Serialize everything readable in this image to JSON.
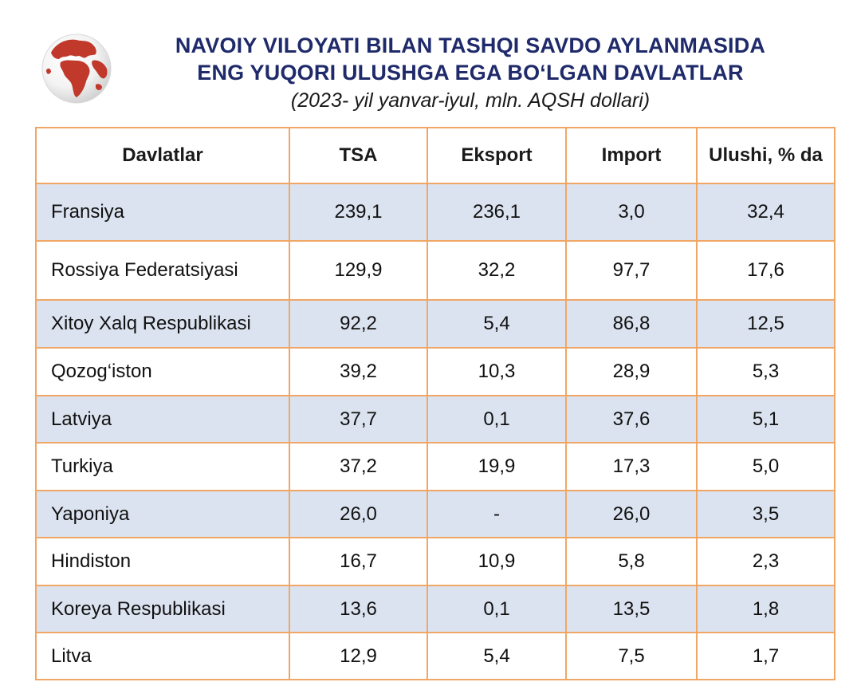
{
  "title": {
    "line1": "NAVOIY VILOYATI BILAN TASHQI SAVDO AYLANMASIDA",
    "line2": "ENG YUQORI ULUSHGA EGA BO‘LGAN DAVLATLAR",
    "subtitle": "(2023- yil yanvar-iyul, mln. AQSH dollari)"
  },
  "logo": {
    "icon": "globe-icon",
    "color": "#c0392b"
  },
  "colors": {
    "border": "#f0a766",
    "shaded_row": "#dce3f0",
    "title": "#1f2a6b"
  },
  "table": {
    "headers": [
      "Davlatlar",
      "TSA",
      "Eksport",
      "Import",
      "Ulushi, % da"
    ],
    "rows": [
      [
        "Fransiya",
        "239,1",
        "236,1",
        "3,0",
        "32,4"
      ],
      [
        "Rossiya Federatsiyasi",
        "129,9",
        "32,2",
        "97,7",
        "17,6"
      ],
      [
        "Xitoy Xalq Respublikasi",
        "92,2",
        "5,4",
        "86,8",
        "12,5"
      ],
      [
        "Qozog‘iston",
        "39,2",
        "10,3",
        "28,9",
        "5,3"
      ],
      [
        "Latviya",
        "37,7",
        "0,1",
        "37,6",
        "5,1"
      ],
      [
        "Turkiya",
        "37,2",
        "19,9",
        "17,3",
        "5,0"
      ],
      [
        "Yaponiya",
        "26,0",
        "-",
        "26,0",
        "3,5"
      ],
      [
        "Hindiston",
        "16,7",
        "10,9",
        "5,8",
        "2,3"
      ],
      [
        "Koreya Respublikasi",
        "13,6",
        "0,1",
        "13,5",
        "1,8"
      ],
      [
        "Litva",
        "12,9",
        "5,4",
        "7,5",
        "1,7"
      ]
    ]
  }
}
